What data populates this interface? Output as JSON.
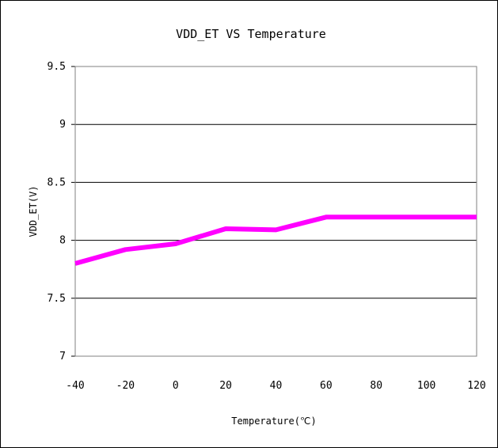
{
  "chart_data": {
    "type": "line",
    "title": "VDD_ET VS Temperature",
    "xlabel": "Temperature(℃)",
    "ylabel": "VDD_ET(V)",
    "x": [
      -40,
      -20,
      0,
      20,
      40,
      60,
      80,
      100,
      120
    ],
    "series": [
      {
        "values": [
          7.8,
          7.92,
          7.97,
          8.1,
          8.09,
          8.2,
          8.2,
          8.2,
          8.2
        ]
      }
    ],
    "xlim": [
      -40,
      120
    ],
    "ylim": [
      7,
      9.5
    ],
    "xticks": [
      "-40",
      "-20",
      "0",
      "20",
      "40",
      "60",
      "80",
      "100",
      "120"
    ],
    "yticks": [
      "7",
      "7.5",
      "8",
      "8.5",
      "9",
      "9.5"
    ],
    "grid": "horizontal",
    "legend": "none",
    "line_color": "#ff00ff"
  }
}
